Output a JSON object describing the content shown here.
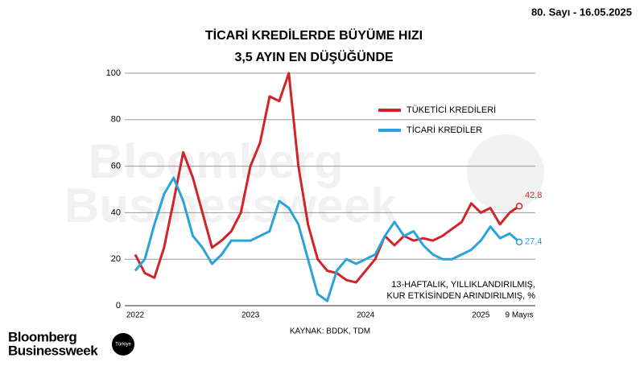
{
  "issue": "80. Sayı - 16.05.2025",
  "branding": {
    "logo_line1": "Bloomberg",
    "logo_line2": "Businessweek",
    "badge": "Türkiye",
    "watermark_line1": "Bloomberg",
    "watermark_line2": "Businessweek"
  },
  "chart_data": {
    "type": "line",
    "title": [
      "TİCARİ KREDİLERDE BÜYÜME HIZI",
      "3,5 AYIN EN DÜŞÜĞÜNDE"
    ],
    "note": [
      "13-HAFTALIK, YILLIKLANDIRILMIŞ,",
      "KUR ETKİSİNDEN ARINDIRILMIŞ, %"
    ],
    "source": "KAYNAK: BDDK, TDM",
    "categories": [
      "2022",
      null,
      null,
      null,
      null,
      null,
      null,
      null,
      null,
      null,
      null,
      null,
      "2023",
      null,
      null,
      null,
      null,
      null,
      null,
      null,
      null,
      null,
      null,
      null,
      "2024",
      null,
      null,
      null,
      null,
      null,
      null,
      null,
      null,
      null,
      null,
      null,
      "2025",
      null,
      null,
      null,
      "9 Mayıs"
    ],
    "series": [
      {
        "name": "TÜKETİCİ KREDİLERİ",
        "color": "#d2232a",
        "values": [
          22,
          14,
          12,
          25,
          45,
          66,
          55,
          40,
          25,
          28,
          32,
          40,
          60,
          70,
          90,
          88,
          100,
          60,
          35,
          20,
          15,
          14,
          11,
          10,
          15,
          20,
          30,
          26,
          30,
          28,
          29,
          28,
          30,
          33,
          36,
          44,
          40,
          42,
          35,
          40,
          42.8
        ],
        "value_labels": [
          null,
          null,
          null,
          null,
          null,
          null,
          null,
          null,
          null,
          null,
          null,
          null,
          null,
          null,
          null,
          null,
          null,
          null,
          null,
          null,
          null,
          null,
          null,
          null,
          null,
          null,
          null,
          null,
          null,
          null,
          null,
          null,
          null,
          null,
          null,
          null,
          null,
          null,
          null,
          null,
          "42,8"
        ]
      },
      {
        "name": "TİCARİ KREDİLER",
        "color": "#29a3d9",
        "values": [
          15,
          20,
          35,
          48,
          55,
          45,
          30,
          25,
          18,
          22,
          28,
          28,
          28,
          30,
          32,
          45,
          42,
          35,
          20,
          5,
          2,
          15,
          20,
          18,
          20,
          22,
          30,
          36,
          30,
          32,
          26,
          22,
          20,
          20,
          22,
          24,
          28,
          34,
          29,
          31,
          27.4
        ],
        "value_labels": [
          null,
          null,
          null,
          null,
          null,
          null,
          null,
          null,
          null,
          null,
          null,
          null,
          null,
          null,
          null,
          null,
          null,
          null,
          null,
          null,
          null,
          null,
          null,
          null,
          null,
          null,
          null,
          null,
          null,
          null,
          null,
          null,
          null,
          null,
          null,
          null,
          null,
          null,
          null,
          null,
          "27,4"
        ]
      }
    ],
    "ylim": [
      0,
      100
    ],
    "yticks": [
      0,
      20,
      40,
      60,
      80,
      100
    ],
    "grid": true
  }
}
